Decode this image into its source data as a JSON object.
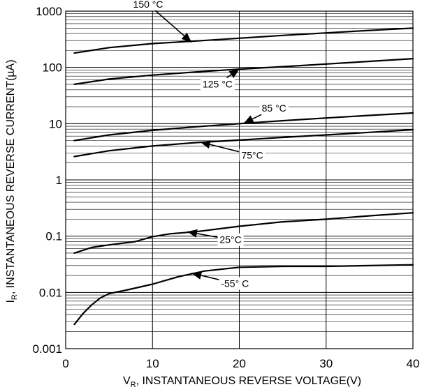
{
  "chart_data": {
    "type": "line",
    "title": "",
    "xlabel": "V_R, INSTANTANEOUS REVERSE VOLTAGE(V)",
    "xlabel_parts": {
      "main": "V",
      "sub": "R",
      "rest": ", INSTANTANEOUS REVERSE VOLTAGE(V)"
    },
    "ylabel": "I_R, INSTANTANEOUS REVERSE CURRENT(µA)",
    "ylabel_parts": {
      "main": "I",
      "sub": "R",
      "rest": ", INSTANTANEOUS REVERSE CURRENT(µA)"
    },
    "xlim": [
      0,
      40
    ],
    "ylim": [
      0.001,
      1000
    ],
    "yscale": "log",
    "grid": true,
    "legend": "none",
    "line_color": "#000000",
    "x_ticks": [
      {
        "value": 0,
        "label": "0"
      },
      {
        "value": 10,
        "label": "10"
      },
      {
        "value": 20,
        "label": "20"
      },
      {
        "value": 30,
        "label": "30"
      },
      {
        "value": 40,
        "label": "40"
      }
    ],
    "y_ticks": [
      {
        "value": 0.001,
        "label": "0.001"
      },
      {
        "value": 0.01,
        "label": "0.01"
      },
      {
        "value": 0.1,
        "label": "0.1"
      },
      {
        "value": 1,
        "label": "1"
      },
      {
        "value": 10,
        "label": "10"
      },
      {
        "value": 100,
        "label": "100"
      },
      {
        "value": 1000,
        "label": "1000"
      }
    ],
    "series": [
      {
        "name": "150 °C",
        "x": [
          1,
          5,
          10,
          15,
          20,
          25,
          30,
          35,
          40
        ],
        "y": [
          180,
          225,
          265,
          295,
          330,
          370,
          410,
          455,
          500
        ]
      },
      {
        "name": "125 °C",
        "x": [
          1,
          5,
          10,
          15,
          20,
          25,
          30,
          35,
          40
        ],
        "y": [
          50,
          62,
          73,
          83,
          93,
          103,
          115,
          128,
          143
        ]
      },
      {
        "name": "85 °C",
        "x": [
          1,
          5,
          10,
          15,
          20,
          25,
          30,
          35,
          40
        ],
        "y": [
          5.0,
          6.3,
          7.6,
          8.8,
          10.0,
          11.3,
          12.6,
          14.0,
          15.5
        ]
      },
      {
        "name": "75°C",
        "x": [
          1,
          5,
          10,
          15,
          20,
          25,
          30,
          35,
          40
        ],
        "y": [
          2.6,
          3.3,
          4.0,
          4.6,
          5.1,
          5.7,
          6.3,
          7.0,
          7.8
        ]
      },
      {
        "name": "25°C",
        "x": [
          1,
          3,
          5,
          8,
          10,
          12,
          15,
          20,
          25,
          30,
          35,
          40
        ],
        "y": [
          0.05,
          0.063,
          0.07,
          0.08,
          0.098,
          0.11,
          0.12,
          0.15,
          0.18,
          0.2,
          0.23,
          0.26
        ]
      },
      {
        "name": "-55° C",
        "x": [
          1,
          2,
          3,
          4,
          5,
          7,
          10,
          13,
          16,
          20,
          25,
          30,
          40
        ],
        "y": [
          0.0027,
          0.0042,
          0.006,
          0.008,
          0.0095,
          0.011,
          0.014,
          0.019,
          0.024,
          0.028,
          0.029,
          0.029,
          0.031
        ]
      }
    ],
    "annotations": [
      {
        "label": "150 °C",
        "series": 0,
        "text_at": [
          9.5,
          1150
        ],
        "arrow_to": [
          14.5,
          280
        ]
      },
      {
        "label": "125 °C",
        "series": 1,
        "text_at": [
          17.5,
          44
        ],
        "arrow_to": [
          20.0,
          93
        ]
      },
      {
        "label": "85 °C",
        "series": 2,
        "text_at": [
          24.0,
          16.3
        ],
        "arrow_to": [
          20.5,
          10.1
        ]
      },
      {
        "label": "75°C",
        "series": 3,
        "text_at": [
          21.5,
          2.4
        ],
        "arrow_to": [
          15.5,
          4.7
        ]
      },
      {
        "label": "25°C",
        "series": 4,
        "text_at": [
          19.0,
          0.075
        ],
        "arrow_to": [
          14.0,
          0.12
        ]
      },
      {
        "label": "-55° C",
        "series": 5,
        "text_at": [
          19.5,
          0.0125
        ],
        "arrow_to": [
          14.5,
          0.022
        ]
      }
    ]
  }
}
